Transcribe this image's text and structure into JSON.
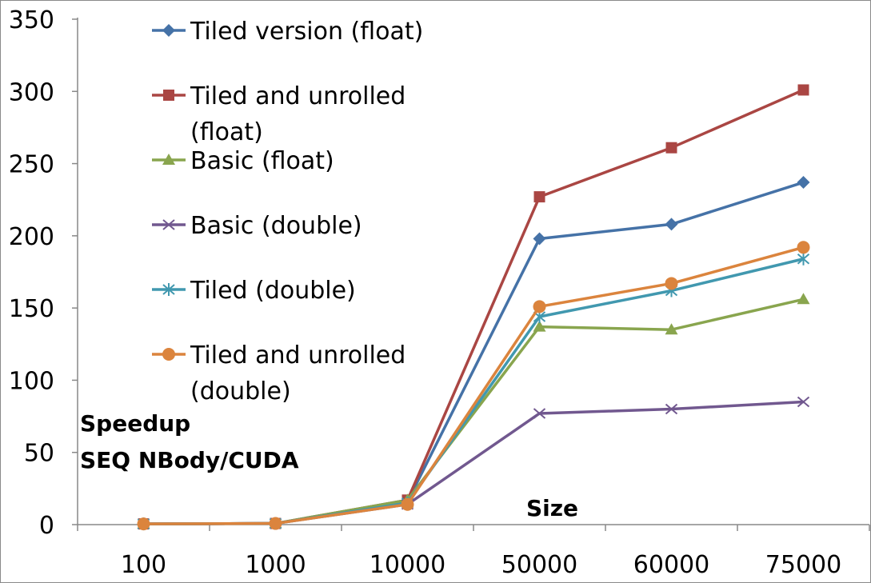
{
  "chart_data": {
    "type": "line",
    "title": "",
    "xlabel": "Size",
    "ylabel_lines": [
      "Speedup",
      "SEQ NBody/CUDA"
    ],
    "categories": [
      "100",
      "1000",
      "10000",
      "50000",
      "60000",
      "75000"
    ],
    "ylim": [
      0,
      350
    ],
    "yticks": [
      0,
      50,
      100,
      150,
      200,
      250,
      300,
      350
    ],
    "grid": false,
    "legend_placement": "upper-left inside plot",
    "series": [
      {
        "name": "Tiled version (float)",
        "name_lines": [
          "Tiled version (float)"
        ],
        "color": "#4572a7",
        "marker": "diamond",
        "values": [
          0.5,
          0.8,
          16,
          198,
          208,
          237
        ]
      },
      {
        "name": "Tiled and unrolled (float)",
        "name_lines": [
          "Tiled and unrolled",
          "(float)"
        ],
        "color": "#aa4643",
        "marker": "square",
        "values": [
          0.5,
          0.8,
          17,
          227,
          261,
          301
        ]
      },
      {
        "name": "Basic (float)",
        "name_lines": [
          "Basic (float)"
        ],
        "color": "#89a54e",
        "marker": "triangle",
        "values": [
          0.5,
          0.8,
          17,
          137,
          135,
          156
        ]
      },
      {
        "name": "Basic (double)",
        "name_lines": [
          "Basic (double)"
        ],
        "color": "#71588f",
        "marker": "x",
        "values": [
          0.5,
          0.8,
          14,
          77,
          80,
          85
        ]
      },
      {
        "name": "Tiled (double)",
        "name_lines": [
          "Tiled (double)"
        ],
        "color": "#4198af",
        "marker": "star",
        "values": [
          0.5,
          0.8,
          15,
          144,
          162,
          184
        ]
      },
      {
        "name": "Tiled and unrolled (double)",
        "name_lines": [
          "Tiled and unrolled",
          "(double)"
        ],
        "color": "#db843d",
        "marker": "circle",
        "values": [
          0.5,
          0.8,
          14,
          151,
          167,
          192
        ]
      }
    ]
  }
}
